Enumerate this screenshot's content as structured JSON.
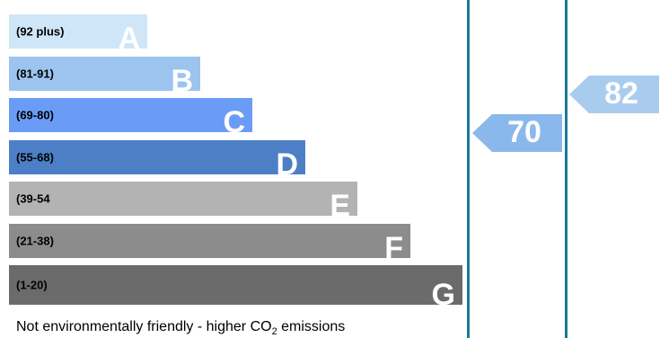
{
  "chart_data": {
    "type": "bar",
    "bands": [
      {
        "range": "(92 plus)",
        "letter": "A",
        "color": "#cfe6f8"
      },
      {
        "range": "(81-91)",
        "letter": "B",
        "color": "#9cc4ef"
      },
      {
        "range": "(69-80)",
        "letter": "C",
        "color": "#6b9cf5"
      },
      {
        "range": "(55-68)",
        "letter": "D",
        "color": "#4d7fc6"
      },
      {
        "range": "(39-54",
        "letter": "E",
        "color": "#b3b3b3"
      },
      {
        "range": "(21-38)",
        "letter": "F",
        "color": "#8c8c8c"
      },
      {
        "range": "(1-20)",
        "letter": "G",
        "color": "#6b6b6b"
      }
    ],
    "markers": [
      {
        "value": "70",
        "band": "C",
        "color": "#8ab8ec"
      },
      {
        "value": "82",
        "band": "B",
        "color": "#a9ccee"
      }
    ]
  },
  "footer": {
    "prefix": "Not environmentally friendly - higher CO",
    "subscript": "2",
    "suffix": " emissions"
  },
  "colors": {
    "divider": "#1b7a9a"
  }
}
